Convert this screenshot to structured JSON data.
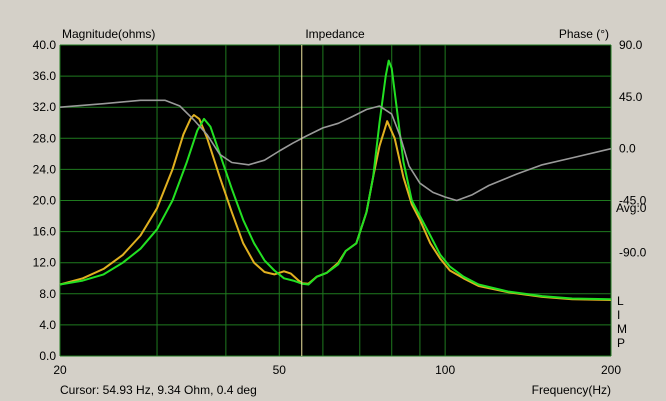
{
  "chart_data": {
    "type": "line",
    "title": "Impedance",
    "ylabel_left": "Magnitude(ohms)",
    "ylabel_right": "Phase (°)",
    "xlabel": "Frequency(Hz)",
    "x_scale": "log",
    "xlim": [
      20,
      200
    ],
    "ylim_left": [
      0,
      40
    ],
    "ylim_right": [
      -180,
      90
    ],
    "x_tick_labels": [
      {
        "value": 20,
        "label": "20"
      },
      {
        "value": 50,
        "label": "50"
      },
      {
        "value": 100,
        "label": "100"
      },
      {
        "value": 200,
        "label": "200"
      }
    ],
    "y_tick_labels_left": [
      "0.0",
      "4.0",
      "8.0",
      "12.0",
      "16.0",
      "20.0",
      "24.0",
      "28.0",
      "32.0",
      "36.0",
      "40.0"
    ],
    "y_tick_labels_right": [
      {
        "value": 90,
        "label": "90.0"
      },
      {
        "value": 45,
        "label": "45.0"
      },
      {
        "value": 0,
        "label": "0.0"
      },
      {
        "value": -45,
        "label": "-45.0"
      },
      {
        "value": -90,
        "label": "-90.0"
      }
    ],
    "right_side_labels": [
      "Avg:0",
      "L",
      "I",
      "M",
      "P"
    ],
    "cursor_text": "Cursor: 54.93 Hz, 9.34 Ohm, 0.4 deg",
    "cursor_x": 54.93,
    "grid": true,
    "colors": {
      "background": "#000000",
      "grid": "#1f7a1f",
      "cursor": "#f0e6a0",
      "frame": "#d4d0c8"
    },
    "series": [
      {
        "axis": "left",
        "color": "#e0b020",
        "points": [
          [
            20,
            9.2
          ],
          [
            22,
            10
          ],
          [
            24,
            11.2
          ],
          [
            26,
            13
          ],
          [
            28,
            15.5
          ],
          [
            30,
            19
          ],
          [
            32,
            24
          ],
          [
            33.5,
            28.5
          ],
          [
            34.5,
            30.5
          ],
          [
            35,
            31
          ],
          [
            35.8,
            30.5
          ],
          [
            37,
            28
          ],
          [
            39,
            23
          ],
          [
            41,
            18.5
          ],
          [
            43,
            14.5
          ],
          [
            45,
            12
          ],
          [
            47,
            10.8
          ],
          [
            49,
            10.5
          ],
          [
            51,
            10.9
          ],
          [
            52.5,
            10.6
          ],
          [
            54,
            9.8
          ],
          [
            55,
            9.35
          ],
          [
            56.5,
            9.3
          ],
          [
            58.5,
            10.2
          ],
          [
            61,
            10.7
          ],
          [
            64,
            12
          ],
          [
            66,
            13.5
          ],
          [
            69,
            14.5
          ],
          [
            72,
            18.5
          ],
          [
            74,
            23
          ],
          [
            76,
            27
          ],
          [
            78.5,
            30.2
          ],
          [
            81,
            28
          ],
          [
            84,
            23
          ],
          [
            87,
            19.5
          ],
          [
            90,
            17.5
          ],
          [
            94,
            14.5
          ],
          [
            98,
            12.5
          ],
          [
            102,
            11
          ],
          [
            108,
            10
          ],
          [
            115,
            9
          ],
          [
            130,
            8.2
          ],
          [
            150,
            7.6
          ],
          [
            170,
            7.3
          ],
          [
            200,
            7.2
          ]
        ]
      },
      {
        "axis": "left",
        "color": "#22e022",
        "points": [
          [
            20,
            9.2
          ],
          [
            22,
            9.7
          ],
          [
            24,
            10.5
          ],
          [
            26,
            12
          ],
          [
            28,
            13.8
          ],
          [
            30,
            16.3
          ],
          [
            32,
            20
          ],
          [
            34,
            25
          ],
          [
            35.5,
            29
          ],
          [
            36.5,
            30.5
          ],
          [
            37.5,
            29.5
          ],
          [
            39,
            26
          ],
          [
            41,
            21.5
          ],
          [
            43,
            17.5
          ],
          [
            45,
            14.5
          ],
          [
            47,
            12.3
          ],
          [
            49,
            11
          ],
          [
            51,
            10
          ],
          [
            53,
            9.7
          ],
          [
            55,
            9.3
          ],
          [
            56.5,
            9.2
          ],
          [
            58.5,
            10.2
          ],
          [
            61,
            10.7
          ],
          [
            64,
            11.8
          ],
          [
            66,
            13.5
          ],
          [
            69,
            14.5
          ],
          [
            72,
            18.5
          ],
          [
            74,
            23
          ],
          [
            76,
            30
          ],
          [
            78,
            36
          ],
          [
            79,
            38
          ],
          [
            80,
            37
          ],
          [
            82,
            31
          ],
          [
            84,
            25
          ],
          [
            87,
            20
          ],
          [
            90,
            18
          ],
          [
            94,
            15.5
          ],
          [
            98,
            13
          ],
          [
            102,
            11.5
          ],
          [
            108,
            10.2
          ],
          [
            115,
            9.2
          ],
          [
            130,
            8.3
          ],
          [
            150,
            7.7
          ],
          [
            170,
            7.4
          ],
          [
            200,
            7.3
          ]
        ]
      },
      {
        "axis": "right",
        "color": "#9a9a9a",
        "points": [
          [
            20,
            36
          ],
          [
            24,
            39
          ],
          [
            28,
            42
          ],
          [
            31,
            42
          ],
          [
            33,
            37
          ],
          [
            35,
            25
          ],
          [
            37,
            12
          ],
          [
            39,
            -5
          ],
          [
            41,
            -12
          ],
          [
            44,
            -14
          ],
          [
            47,
            -10
          ],
          [
            50,
            -2
          ],
          [
            53,
            5
          ],
          [
            56,
            11
          ],
          [
            60,
            18
          ],
          [
            64,
            22
          ],
          [
            68,
            28
          ],
          [
            72,
            34
          ],
          [
            76,
            37
          ],
          [
            80,
            30
          ],
          [
            83,
            10
          ],
          [
            86,
            -15
          ],
          [
            90,
            -30
          ],
          [
            95,
            -38
          ],
          [
            100,
            -42
          ],
          [
            105,
            -45
          ],
          [
            112,
            -40
          ],
          [
            120,
            -32
          ],
          [
            135,
            -22
          ],
          [
            150,
            -14
          ],
          [
            170,
            -8
          ],
          [
            200,
            0
          ]
        ]
      }
    ]
  }
}
